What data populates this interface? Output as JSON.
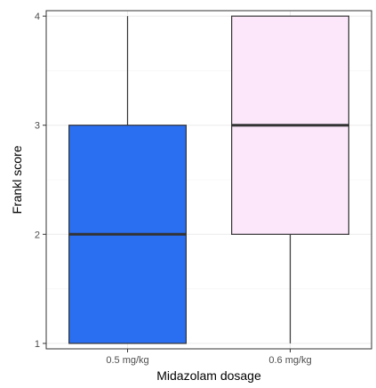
{
  "chart_data": {
    "type": "boxplot",
    "xlabel": "Midazolam dosage",
    "ylabel": "Frankl score",
    "ylim": [
      0.95,
      4.05
    ],
    "y_ticks": [
      1,
      2,
      3,
      4
    ],
    "grid": true,
    "categories": [
      "0.5 mg/kg",
      "0.6 mg/kg"
    ],
    "boxes": [
      {
        "category": "0.5 mg/kg",
        "min": 1,
        "q1": 1,
        "median": 2,
        "q3": 3,
        "max": 4,
        "color": "#2a6ff2"
      },
      {
        "category": "0.6 mg/kg",
        "min": 1,
        "q1": 2,
        "median": 3,
        "q3": 4,
        "max": 4,
        "color": "#fbe6fa"
      }
    ]
  }
}
